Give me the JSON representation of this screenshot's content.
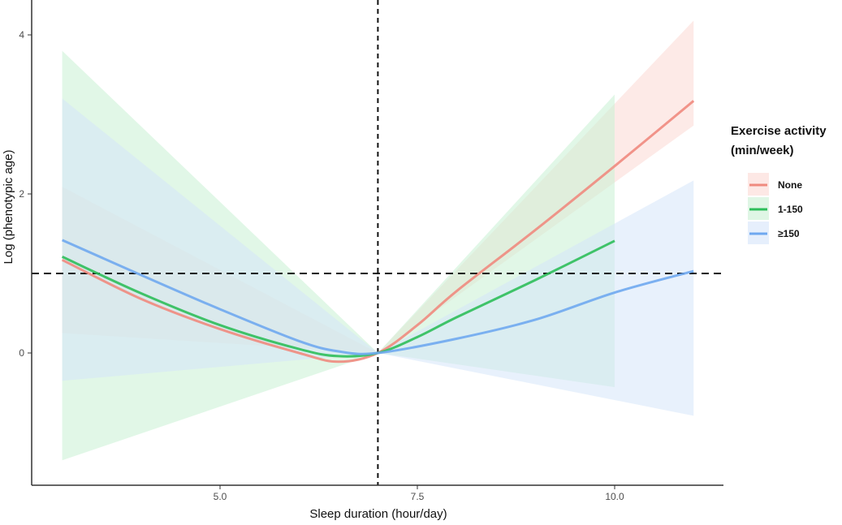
{
  "chart_data": {
    "type": "line",
    "title": "",
    "xlabel": "Sleep duration (hour/day)",
    "ylabel": "Log (phenotypic age)",
    "xlim": [
      2.4,
      11.4
    ],
    "ylim": [
      -1.66,
      4.44
    ],
    "xticks": [
      5.0,
      7.5,
      10.0
    ],
    "xtick_labels": [
      "5.0",
      "7.5",
      "10.0"
    ],
    "yticks": [
      0,
      2,
      4
    ],
    "ytick_labels": [
      "0",
      "2",
      "4"
    ],
    "grid": false,
    "reference_lines": {
      "vertical_x": 7,
      "horizontal_y": 1
    },
    "legend": {
      "title_line1": "Exercise activity",
      "title_line2": "(min/week)",
      "placement": "right"
    },
    "series": [
      {
        "name": "None",
        "color": "#F08A7E",
        "band_color": "#FBD9D4",
        "x": [
          3,
          4,
          5,
          6,
          6.5,
          7,
          7.5,
          8,
          9,
          10,
          11
        ],
        "y": [
          1.17,
          0.68,
          0.3,
          0.0,
          -0.11,
          0,
          0.35,
          0.78,
          1.55,
          2.35,
          3.17
        ],
        "ci_x": [
          3,
          7,
          11
        ],
        "ci_lower": [
          0.25,
          0,
          2.86
        ],
        "ci_upper": [
          2.09,
          0,
          4.18
        ]
      },
      {
        "name": "1-150",
        "color": "#2DBE5A",
        "band_color": "#C9F0D3",
        "x": [
          3,
          4,
          5,
          6,
          6.5,
          7,
          7.5,
          8,
          9,
          10
        ],
        "y": [
          1.21,
          0.75,
          0.35,
          0.05,
          -0.04,
          0,
          0.2,
          0.45,
          0.92,
          1.41
        ],
        "ci_x": [
          3,
          7,
          10
        ],
        "ci_lower": [
          -1.35,
          0,
          -0.43
        ],
        "ci_upper": [
          3.8,
          0,
          3.25
        ]
      },
      {
        "name": "≥150",
        "color": "#6FA8F0",
        "band_color": "#D6E5FA",
        "x": [
          3,
          4,
          5,
          6,
          6.5,
          7,
          8,
          9,
          10,
          11
        ],
        "y": [
          1.42,
          0.98,
          0.55,
          0.15,
          0.02,
          0,
          0.18,
          0.42,
          0.76,
          1.03
        ],
        "ci_x": [
          3,
          7,
          11
        ],
        "ci_lower": [
          -0.35,
          0,
          -0.79
        ],
        "ci_upper": [
          3.2,
          0,
          2.17
        ]
      }
    ]
  }
}
